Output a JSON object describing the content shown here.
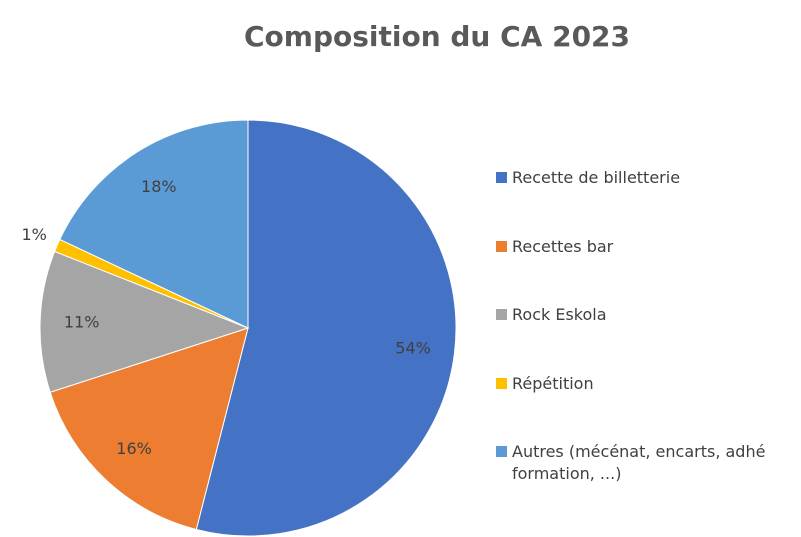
{
  "chart_data": {
    "type": "pie",
    "title": "Composition du CA 2023",
    "categories": [
      "Recette de billetterie",
      "Recettes bar",
      "Rock Eskola",
      "Répétition",
      "Autres (mécénat, encarts, adhé\nformation, ...)"
    ],
    "values": [
      54,
      16,
      11,
      1,
      18
    ],
    "value_labels": [
      "54%",
      "16%",
      "11%",
      "1%",
      "18%"
    ],
    "colors": [
      "#4472c4",
      "#ed7d31",
      "#a5a5a5",
      "#ffc000",
      "#5b9bd5"
    ],
    "legend": "right"
  }
}
